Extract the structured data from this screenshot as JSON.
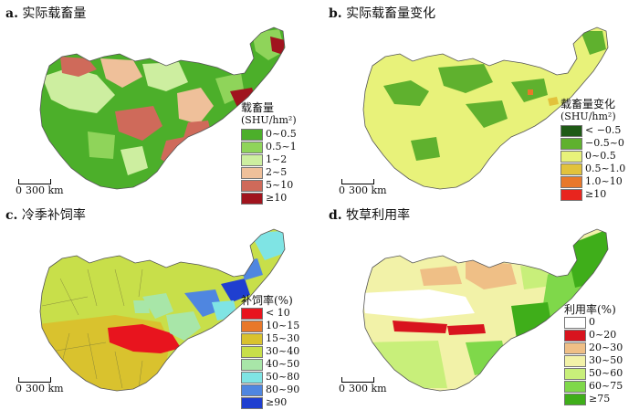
{
  "panels": {
    "a": {
      "label": "a.",
      "title": "实际载畜量",
      "legend_title": "载畜量",
      "legend_unit": "(SHU/hm²)",
      "legend": [
        {
          "label": "0~0.5",
          "color": "#4caf2a"
        },
        {
          "label": "0.5~1",
          "color": "#8fd45a"
        },
        {
          "label": "1~2",
          "color": "#cdeea0"
        },
        {
          "label": "2~5",
          "color": "#efc09a"
        },
        {
          "label": "5~10",
          "color": "#cf6a5a"
        },
        {
          "label": "≥10",
          "color": "#a0141e"
        }
      ],
      "scale_zero": "0",
      "scale_label": "300 km"
    },
    "b": {
      "label": "b.",
      "title": "实际载畜量变化",
      "legend_title": "载畜量变化",
      "legend_unit": "(SHU/hm²)",
      "legend": [
        {
          "label": "< −0.5",
          "color": "#1f5a16"
        },
        {
          "label": "−0.5~0",
          "color": "#5fb12e"
        },
        {
          "label": "0~0.5",
          "color": "#e8f27a"
        },
        {
          "label": "0.5~1.0",
          "color": "#e2c23c"
        },
        {
          "label": "1.0~10",
          "color": "#e8782a"
        },
        {
          "label": "≥10",
          "color": "#e8251e"
        }
      ],
      "scale_zero": "0",
      "scale_label": "300 km"
    },
    "c": {
      "label": "c.",
      "title": "冷季补饲率",
      "legend_title": "补饲率(%)",
      "legend": [
        {
          "label": "< 10",
          "color": "#e8141e"
        },
        {
          "label": "10~15",
          "color": "#e8782a"
        },
        {
          "label": "15~30",
          "color": "#d9c22e"
        },
        {
          "label": "30~40",
          "color": "#c8df4a"
        },
        {
          "label": "40~50",
          "color": "#a8e6a8"
        },
        {
          "label": "50~80",
          "color": "#7fe4e4"
        },
        {
          "label": "80~90",
          "color": "#4f86e0"
        },
        {
          "label": "≥90",
          "color": "#1f3fd0"
        }
      ],
      "scale_zero": "0",
      "scale_label": "300 km"
    },
    "d": {
      "label": "d.",
      "title": "牧草利用率",
      "legend_title": "利用率(%)",
      "legend": [
        {
          "label": "0",
          "color": "#ffffff"
        },
        {
          "label": "0~20",
          "color": "#d8141e"
        },
        {
          "label": "20~30",
          "color": "#efbf86"
        },
        {
          "label": "30~50",
          "color": "#f2f2a8"
        },
        {
          "label": "50~60",
          "color": "#c8ef7a"
        },
        {
          "label": "60~75",
          "color": "#7fd84a"
        },
        {
          "label": "≥75",
          "color": "#3fae1a"
        }
      ],
      "scale_zero": "0",
      "scale_label": "300 km"
    }
  }
}
